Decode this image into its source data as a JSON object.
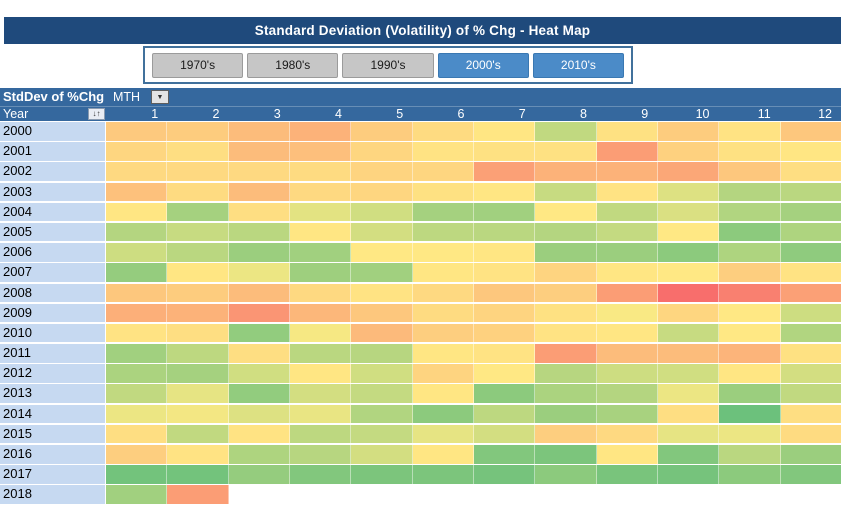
{
  "title": "Standard Deviation (Volatility) of % Chg - Heat Map",
  "slicer": {
    "buttons": [
      {
        "label": "1970's",
        "selected": false
      },
      {
        "label": "1980's",
        "selected": false
      },
      {
        "label": "1990's",
        "selected": false
      },
      {
        "label": "2000's",
        "selected": true
      },
      {
        "label": "2010's",
        "selected": true
      }
    ]
  },
  "pivot": {
    "value_field": "StdDev of %Chg",
    "column_field": "MTH",
    "row_field": "Year"
  },
  "icons": {
    "dropdown": "▼",
    "sort_filter": "↓↑"
  },
  "colors": {
    "title_bar": "#1F4A7C",
    "pivot_header": "#35689E",
    "row_label_bg": "#C6D9F1",
    "slicer_border": "#41719C",
    "slicer_selected": "#4B8BC8",
    "slicer_unselected": "#C6C6C6"
  },
  "chart_data": {
    "type": "heatmap",
    "title": "Standard Deviation (Volatility) of % Chg - Heat Map",
    "x_label": "MTH",
    "y_label": "Year",
    "x": [
      "1",
      "2",
      "3",
      "4",
      "5",
      "6",
      "7",
      "8",
      "9",
      "10",
      "11",
      "12"
    ],
    "y": [
      "2000",
      "2001",
      "2002",
      "2003",
      "2004",
      "2005",
      "2006",
      "2007",
      "2008",
      "2009",
      "2010",
      "2011",
      "2012",
      "2013",
      "2014",
      "2015",
      "2016",
      "2017",
      "2018"
    ],
    "values": [
      [
        63,
        62,
        68,
        72,
        62,
        56,
        52,
        30,
        54,
        62,
        53,
        64
      ],
      [
        58,
        55,
        68,
        67,
        58,
        53,
        54,
        54,
        80,
        60,
        54,
        52
      ],
      [
        57,
        57,
        57,
        56,
        59,
        58,
        79,
        72,
        72,
        76,
        64,
        55
      ],
      [
        66,
        56,
        68,
        57,
        58,
        54,
        52,
        32,
        53,
        39,
        26,
        28
      ],
      [
        52,
        21,
        55,
        41,
        35,
        21,
        20,
        51,
        30,
        38,
        25,
        21
      ],
      [
        26,
        32,
        28,
        52,
        36,
        29,
        28,
        26,
        31,
        51,
        13,
        24
      ],
      [
        34,
        28,
        18,
        20,
        51,
        51,
        52,
        18,
        18,
        13,
        24,
        14
      ],
      [
        16,
        52,
        44,
        19,
        20,
        52,
        53,
        59,
        52,
        51,
        61,
        53
      ],
      [
        64,
        62,
        68,
        57,
        53,
        57,
        64,
        61,
        80,
        98,
        91,
        79
      ],
      [
        73,
        72,
        83,
        70,
        64,
        56,
        59,
        54,
        48,
        58,
        51,
        34
      ],
      [
        53,
        55,
        15,
        47,
        69,
        61,
        60,
        53,
        52,
        32,
        51,
        25
      ],
      [
        20,
        29,
        55,
        28,
        27,
        52,
        53,
        80,
        68,
        68,
        71,
        54
      ],
      [
        23,
        21,
        35,
        52,
        35,
        59,
        51,
        27,
        34,
        35,
        52,
        36
      ],
      [
        30,
        42,
        15,
        36,
        31,
        52,
        13,
        23,
        26,
        44,
        18,
        30
      ],
      [
        44,
        46,
        39,
        43,
        25,
        13,
        29,
        18,
        22,
        55,
        3,
        55
      ],
      [
        55,
        30,
        53,
        29,
        31,
        42,
        36,
        61,
        57,
        42,
        44,
        56
      ],
      [
        61,
        53,
        24,
        27,
        36,
        52,
        10,
        8,
        52,
        10,
        28,
        18
      ],
      [
        5,
        5,
        16,
        10,
        8,
        8,
        6,
        13,
        7,
        6,
        13,
        10
      ],
      [
        20,
        80,
        null,
        null,
        null,
        null,
        null,
        null,
        null,
        null,
        null,
        null
      ]
    ],
    "value_scale": {
      "description": "No numbers shown in cells; values estimated from 3-color scale fill: 0 = lowest volatility (green), 50 = mid (yellow), 100 = highest volatility (red). null = no data.",
      "min_color": "#63BE7B",
      "mid_color": "#FFEB84",
      "max_color": "#F8696B"
    },
    "grid": false,
    "legend": "none"
  }
}
